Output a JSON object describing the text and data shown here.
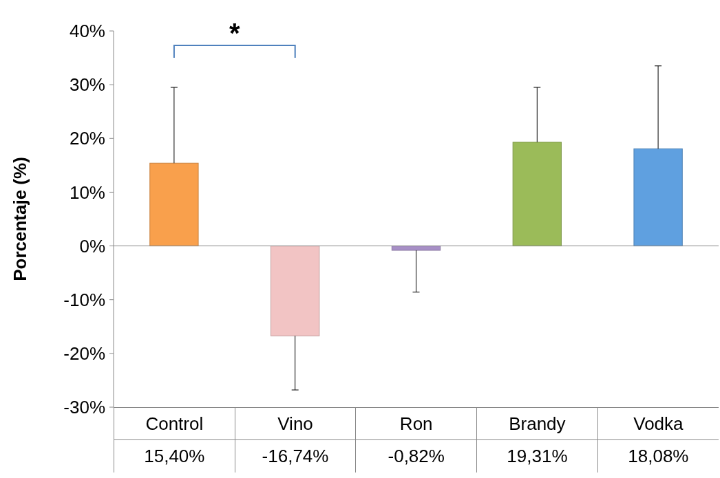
{
  "chart_data": {
    "type": "bar",
    "ylabel": "Porcentaje (%)",
    "categories": [
      "Control",
      "Vino",
      "Ron",
      "Brandy",
      "Vodka"
    ],
    "values": [
      15.4,
      -16.74,
      -0.82,
      19.31,
      18.08
    ],
    "colors": [
      "#f9a04c",
      "#f2c4c4",
      "#a78fc6",
      "#9bbb59",
      "#5fa0e0"
    ],
    "errors": [
      [
        15.4,
        29.5
      ],
      [
        -26.8,
        -16.74
      ],
      [
        -8.6,
        -0.82
      ],
      [
        19.31,
        29.5
      ],
      [
        18.08,
        33.5
      ]
    ],
    "value_labels": [
      "15,40%",
      "-16,74%",
      "-0,82%",
      "19,31%",
      "18,08%"
    ],
    "ylim": [
      -30,
      40
    ],
    "yticks": [
      {
        "value": -30,
        "label": "-30%"
      },
      {
        "value": -20,
        "label": "-20%"
      },
      {
        "value": -10,
        "label": "-10%"
      },
      {
        "value": 0,
        "label": "0%"
      },
      {
        "value": 10,
        "label": "10%"
      },
      {
        "value": 20,
        "label": "20%"
      },
      {
        "value": 30,
        "label": "30%"
      },
      {
        "value": 40,
        "label": "40%"
      }
    ],
    "annotations": [
      "*"
    ]
  }
}
